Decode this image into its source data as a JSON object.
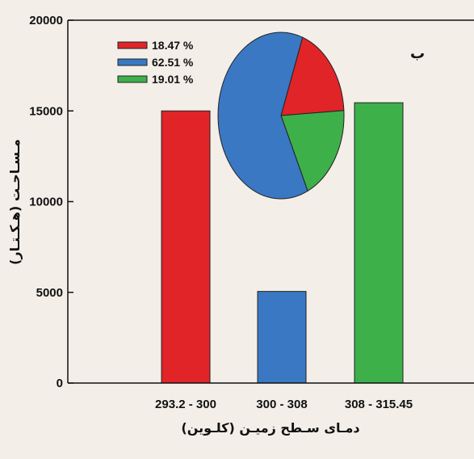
{
  "chart_data": [
    {
      "type": "bar",
      "categories": [
        "293.2 - 300",
        "300 - 308",
        "308 - 315.45"
      ],
      "values": [
        15000,
        5050,
        15450
      ],
      "colors": [
        "#e02428",
        "#3a78c3",
        "#3db04a"
      ],
      "xlabel": "دمـای سـطح زمیـن (کلـوین)",
      "ylabel": "مـسـاحـت (هـکـتـار)",
      "ylim": [
        0,
        20000
      ],
      "yticks": [
        0,
        5000,
        10000,
        15000,
        20000
      ],
      "panel_label": "ب",
      "grid": false
    },
    {
      "type": "pie",
      "labels": [
        "18.47 %",
        "62.51 %",
        "19.01 %"
      ],
      "values": [
        18.47,
        62.51,
        19.01
      ],
      "colors": [
        "#e02428",
        "#3a78c3",
        "#3db04a"
      ],
      "legend_position": "top-left"
    }
  ]
}
